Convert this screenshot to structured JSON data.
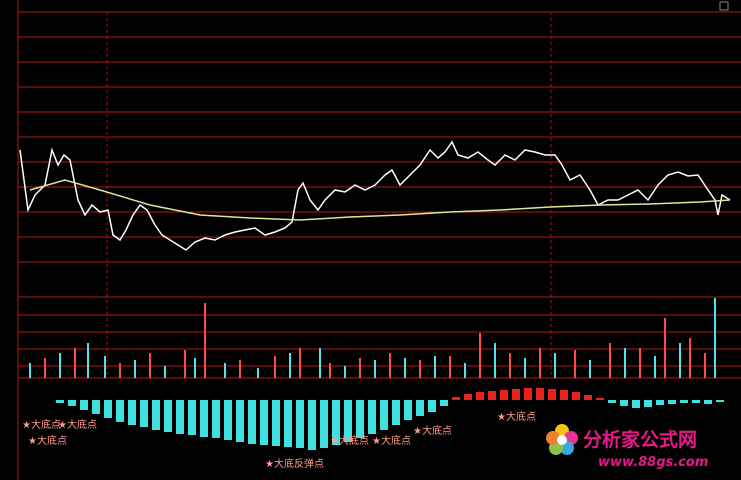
{
  "chart_data": [
    {
      "type": "line",
      "x": [
        20,
        28,
        35,
        45,
        52,
        58,
        64,
        70,
        78,
        85,
        92,
        100,
        108,
        113,
        120,
        126,
        133,
        140,
        147,
        155,
        162,
        170,
        178,
        186,
        195,
        205,
        215,
        225,
        235,
        245,
        255,
        265,
        275,
        285,
        292,
        298,
        303,
        310,
        318,
        325,
        335,
        345,
        355,
        365,
        375,
        385,
        392,
        400,
        410,
        420,
        430,
        438,
        445,
        452,
        458,
        468,
        478,
        488,
        495,
        505,
        515,
        525,
        535,
        545,
        555,
        562,
        570,
        580,
        590,
        598,
        608,
        618,
        628,
        638,
        648,
        658,
        668,
        678,
        688,
        698,
        708,
        715,
        718,
        722,
        730
      ],
      "series": [
        {
          "color": "#ffffff",
          "values": [
            112,
            52,
            67,
            77,
            112,
            97,
            107,
            102,
            62,
            47,
            57,
            50,
            52,
            27,
            22,
            32,
            47,
            57,
            52,
            37,
            27,
            22,
            17,
            12,
            20,
            24,
            22,
            27,
            30,
            32,
            34,
            27,
            30,
            34,
            40,
            72,
            79,
            62,
            52,
            62,
            72,
            70,
            77,
            72,
            77,
            87,
            92,
            77,
            87,
            97,
            112,
            104,
            110,
            120,
            107,
            104,
            110,
            102,
            97,
            107,
            102,
            112,
            110,
            107,
            107,
            97,
            82,
            87,
            72,
            57,
            62,
            62,
            67,
            72,
            62,
            77,
            87,
            90,
            86,
            87,
            72,
            62,
            47,
            67,
            62
          ]
        }
      ],
      "xlim": [
        0,
        741
      ],
      "ylim": [
        0,
        250
      ]
    },
    {
      "type": "line",
      "x": [
        30,
        65,
        100,
        150,
        200,
        250,
        300,
        350,
        400,
        450,
        500,
        550,
        600,
        650,
        700,
        730
      ],
      "series": [
        {
          "color": "#d8e89a",
          "values": [
            72,
            82,
            72,
            57,
            47,
            44,
            42,
            45,
            47,
            50,
            52,
            55,
            57,
            58,
            60,
            62
          ]
        }
      ],
      "xlim": [
        0,
        741
      ],
      "ylim": [
        0,
        250
      ]
    },
    {
      "type": "bar",
      "xlim": [
        0,
        741
      ],
      "ylim": [
        0,
        96
      ],
      "series": [
        {
          "color": "#ff4a4a",
          "x": [
            45,
            75,
            120,
            150,
            185,
            205,
            240,
            275,
            300,
            330,
            360,
            390,
            420,
            450,
            480,
            510,
            540,
            575,
            610,
            640,
            665,
            690,
            705
          ],
          "values": [
            20,
            30,
            15,
            25,
            28,
            75,
            18,
            22,
            30,
            15,
            20,
            25,
            18,
            22,
            45,
            25,
            30,
            28,
            35,
            30,
            60,
            40,
            25
          ]
        },
        {
          "color": "#4fe3e8",
          "x": [
            30,
            60,
            88,
            105,
            135,
            165,
            195,
            225,
            258,
            290,
            320,
            345,
            375,
            405,
            435,
            465,
            495,
            525,
            555,
            590,
            625,
            655,
            680,
            715
          ],
          "values": [
            15,
            25,
            35,
            22,
            18,
            12,
            20,
            15,
            10,
            25,
            30,
            12,
            18,
            20,
            22,
            15,
            35,
            20,
            25,
            18,
            30,
            22,
            35,
            80
          ]
        }
      ]
    },
    {
      "type": "bar",
      "xlim": [
        0,
        741
      ],
      "ylim": [
        -70,
        12
      ],
      "up_color": "#e8231f",
      "down_color": "#3fe0e0",
      "x": [
        60,
        72,
        84,
        96,
        108,
        120,
        132,
        144,
        156,
        168,
        180,
        192,
        204,
        216,
        228,
        240,
        252,
        264,
        276,
        288,
        300,
        312,
        324,
        336,
        348,
        360,
        372,
        384,
        396,
        408,
        420,
        432,
        444,
        456,
        468,
        480,
        492,
        504,
        516,
        528,
        540,
        552,
        564,
        576,
        588,
        600,
        612,
        624,
        636,
        648,
        660,
        672,
        684,
        696,
        708,
        720
      ],
      "values": [
        -3,
        -6,
        -10,
        -14,
        -18,
        -22,
        -25,
        -27,
        -30,
        -32,
        -34,
        -35,
        -37,
        -38,
        -40,
        -42,
        -44,
        -45,
        -46,
        -47,
        -48,
        -50,
        -48,
        -45,
        -42,
        -38,
        -34,
        -30,
        -25,
        -20,
        -16,
        -12,
        -6,
        3,
        6,
        8,
        9,
        10,
        11,
        12,
        12,
        11,
        10,
        8,
        5,
        2,
        -3,
        -6,
        -8,
        -7,
        -5,
        -4,
        -3,
        -3,
        -4,
        -2
      ]
    }
  ],
  "annotations": [
    "★大底点",
    "★大底点",
    "★大底点",
    "★大底反弹点",
    "★大底点",
    "★大底点",
    "★大底点",
    "★大底点"
  ],
  "watermark": {
    "title": "分析家公式网",
    "url": "www.88gs.com"
  }
}
